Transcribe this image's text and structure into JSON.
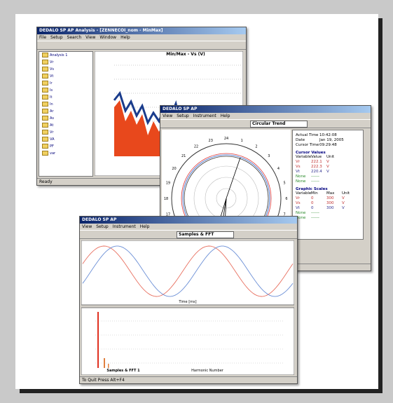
{
  "windows": [
    {
      "title": "DEDALO SP AP Analysis - [ZENNECOI_nom - MinMax]",
      "menu": [
        "File",
        "Setup",
        "Search",
        "View",
        "Window",
        "Help"
      ],
      "tree": [
        "Analysis 1",
        "Vr",
        "Vs",
        "Vt",
        "Ir",
        "Is",
        "It",
        "In",
        "Ar",
        "As",
        "At",
        "Vr",
        "VA",
        "PF",
        "var"
      ],
      "chart_title": "Min/Max - Vs (V)",
      "status": "Ready"
    },
    {
      "title": "DEDALO SP AP",
      "menu": [
        "View",
        "Setup",
        "Instrument",
        "Help"
      ],
      "view": "Circular Trend",
      "hours": [
        "1",
        "2",
        "3",
        "4",
        "5",
        "6",
        "7",
        "8",
        "9",
        "10",
        "11",
        "12",
        "13",
        "14",
        "15",
        "16",
        "17",
        "18",
        "19",
        "20",
        "21",
        "22",
        "23",
        "24"
      ],
      "info": [
        [
          "Actual Time",
          "10:42:08"
        ],
        [
          "Date",
          "Jan 19, 2005"
        ],
        [
          "Cursor Time",
          "09:29:48"
        ]
      ],
      "cursor_values": {
        "title": "Cursor Values",
        "header": [
          "Variable",
          "Value",
          "Unit"
        ],
        "rows": [
          [
            "Vr",
            "222.1",
            "V"
          ],
          [
            "Vs",
            "222.3",
            "V"
          ],
          [
            "Vt",
            "220.4",
            "V"
          ],
          [
            "None",
            "------"
          ],
          [
            "None",
            "------"
          ]
        ]
      },
      "graphic_scales": {
        "title": "Graphic Scales",
        "header": [
          "Variable",
          "Min",
          "Max",
          "Unit"
        ],
        "rows": [
          [
            "Vr",
            "0",
            "300",
            "V"
          ],
          [
            "Vs",
            "0",
            "300",
            "V"
          ],
          [
            "Vt",
            "0",
            "300",
            "V"
          ],
          [
            "None",
            "------"
          ],
          [
            "None",
            "------"
          ]
        ]
      }
    },
    {
      "title": "DEDALO SP AP",
      "menu": [
        "View",
        "Setup",
        "Instrument",
        "Help"
      ],
      "view": "Samples & FFT",
      "x_label": "Time [ms]",
      "fft_title": "Samples & FFT 1",
      "fft_x_label": "Harmonic Number",
      "status": "To Quit Press Alt+F4"
    }
  ]
}
